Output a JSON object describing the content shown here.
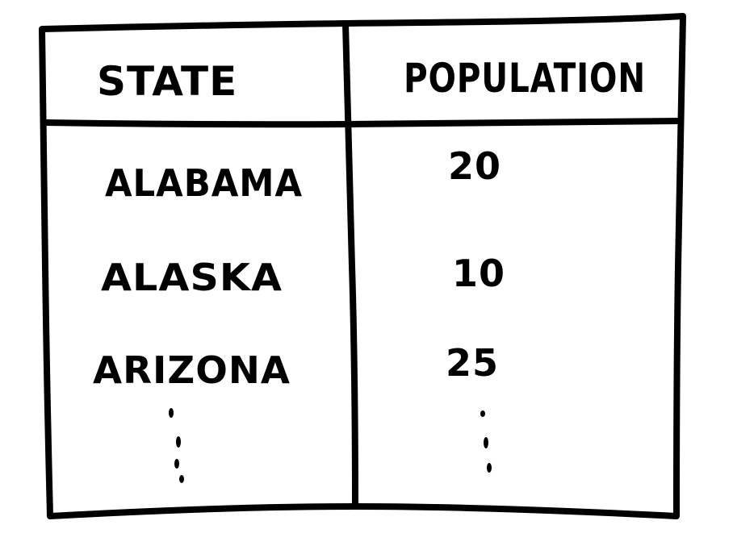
{
  "table": {
    "columns": [
      "STATE",
      "POPULATION"
    ],
    "rows": [
      {
        "state": "ALABAMA",
        "population": "20"
      },
      {
        "state": "ALASKA",
        "population": "10"
      },
      {
        "state": "ARIZONA",
        "population": "25"
      }
    ],
    "continuation": "⋮"
  },
  "style": {
    "ink_color": "#000000",
    "paper_color": "#ffffff"
  }
}
